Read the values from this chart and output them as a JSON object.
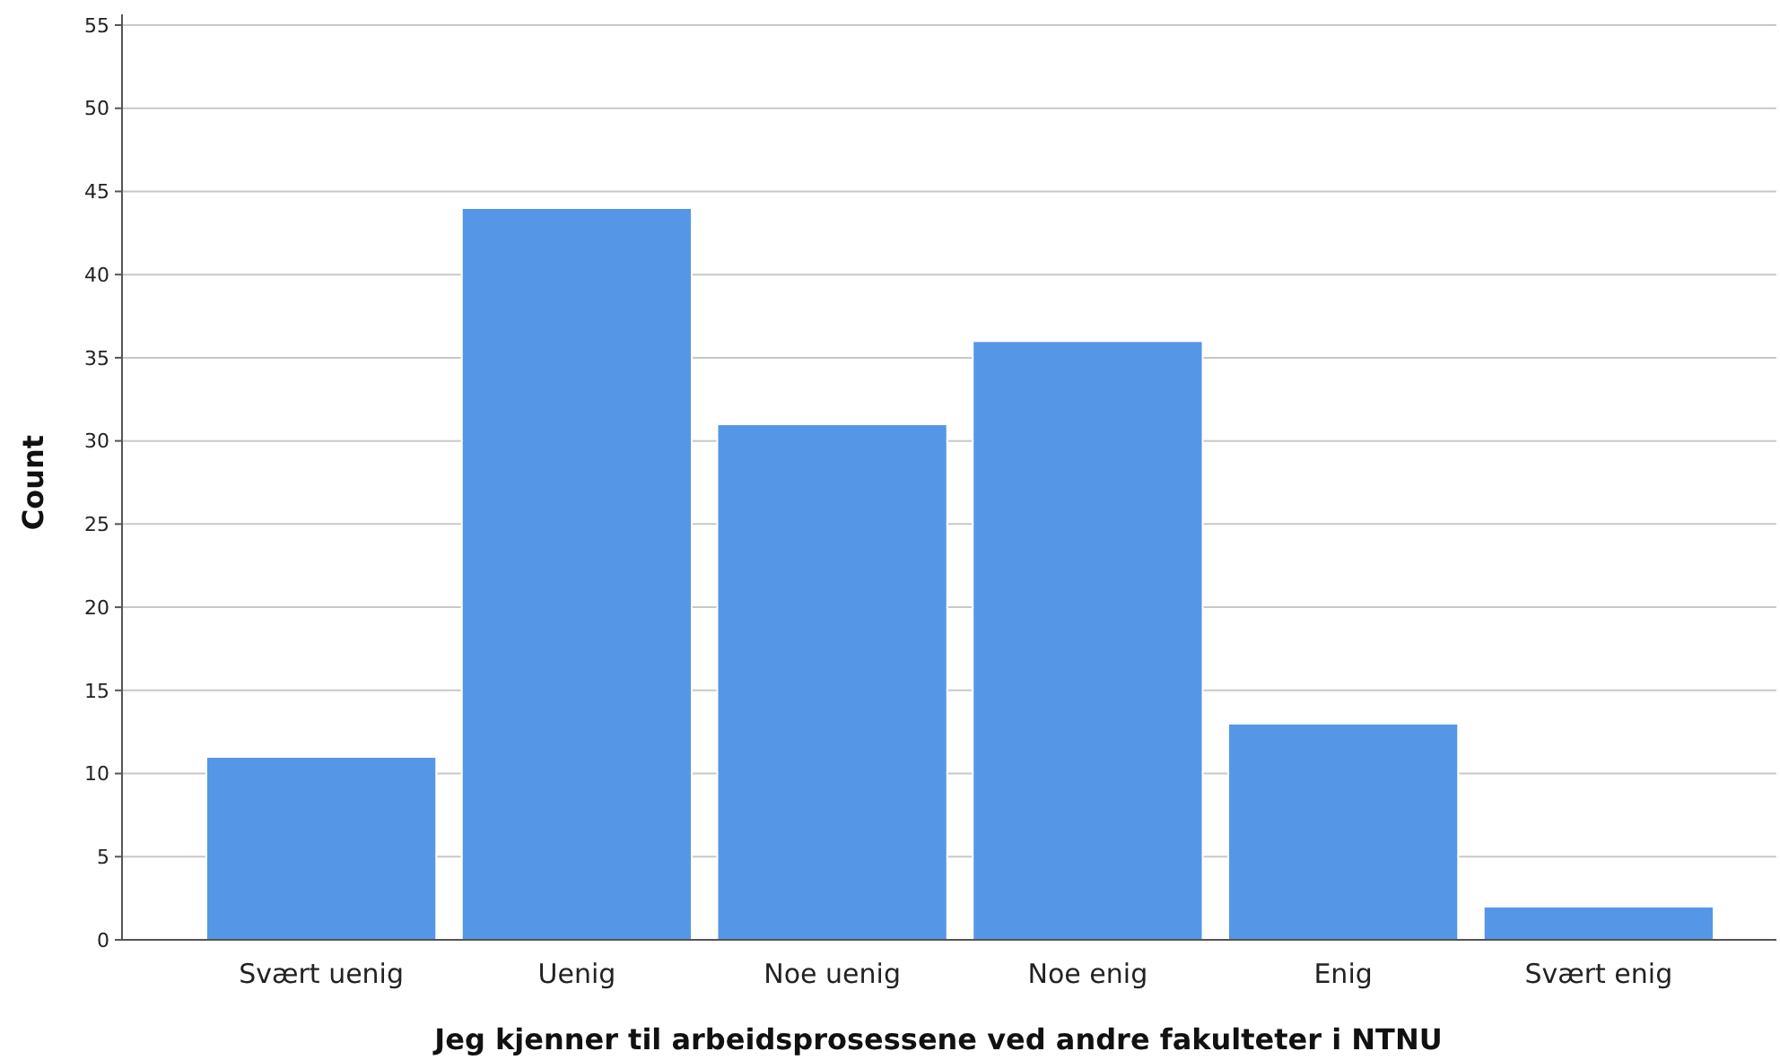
{
  "chart_data": {
    "type": "bar",
    "xlabel": "Jeg kjenner til arbeidsprosessene ved andre fakulteter i NTNU",
    "ylabel": "Count",
    "categories": [
      "Svært uenig",
      "Uenig",
      "Noe uenig",
      "Noe enig",
      "Enig",
      "Svært enig"
    ],
    "values": [
      11,
      44,
      31,
      36,
      13,
      2
    ],
    "color": "#5596e6",
    "ylim": [
      0,
      55
    ],
    "yticks": [
      0,
      5,
      10,
      15,
      20,
      25,
      30,
      35,
      40,
      45,
      50,
      55
    ],
    "grid": "y"
  }
}
